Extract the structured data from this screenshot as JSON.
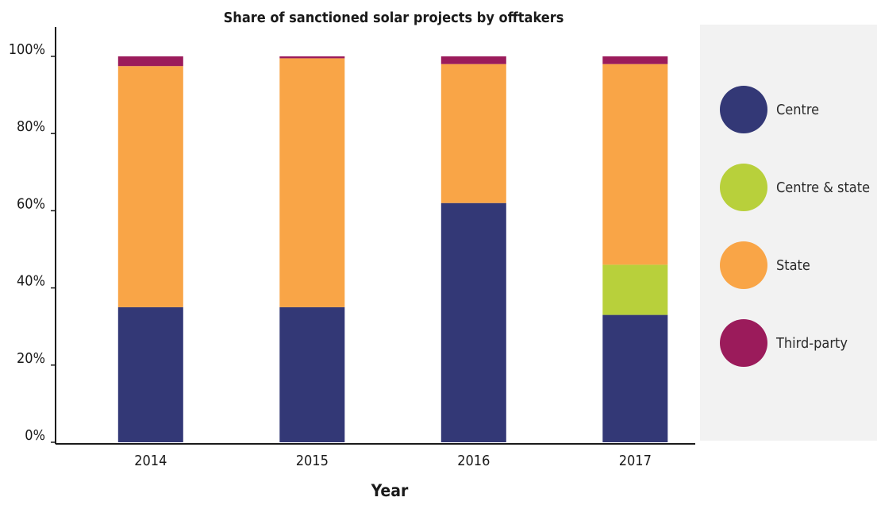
{
  "chart_data": {
    "type": "bar",
    "stacked": true,
    "title": "Share of sanctioned solar projects by offtakers",
    "xlabel": "Year",
    "ylabel": "",
    "categories": [
      "2014",
      "2015",
      "2016",
      "2017"
    ],
    "ylim": [
      0,
      100
    ],
    "yticks": [
      "0%",
      "20%",
      "40%",
      "60%",
      "80%",
      "100%"
    ],
    "grid": false,
    "legend_placement": "right",
    "series": [
      {
        "name": "Centre",
        "color": "#333876",
        "values": [
          35,
          35,
          62,
          33
        ]
      },
      {
        "name": "Centre & state",
        "color": "#b8d03b",
        "values": [
          0,
          0,
          0,
          13
        ]
      },
      {
        "name": "State",
        "color": "#f9a547",
        "values": [
          62.5,
          64.5,
          36,
          52
        ]
      },
      {
        "name": "Third-party",
        "color": "#9b1b5b",
        "values": [
          2.5,
          0.5,
          2,
          2
        ]
      }
    ]
  }
}
